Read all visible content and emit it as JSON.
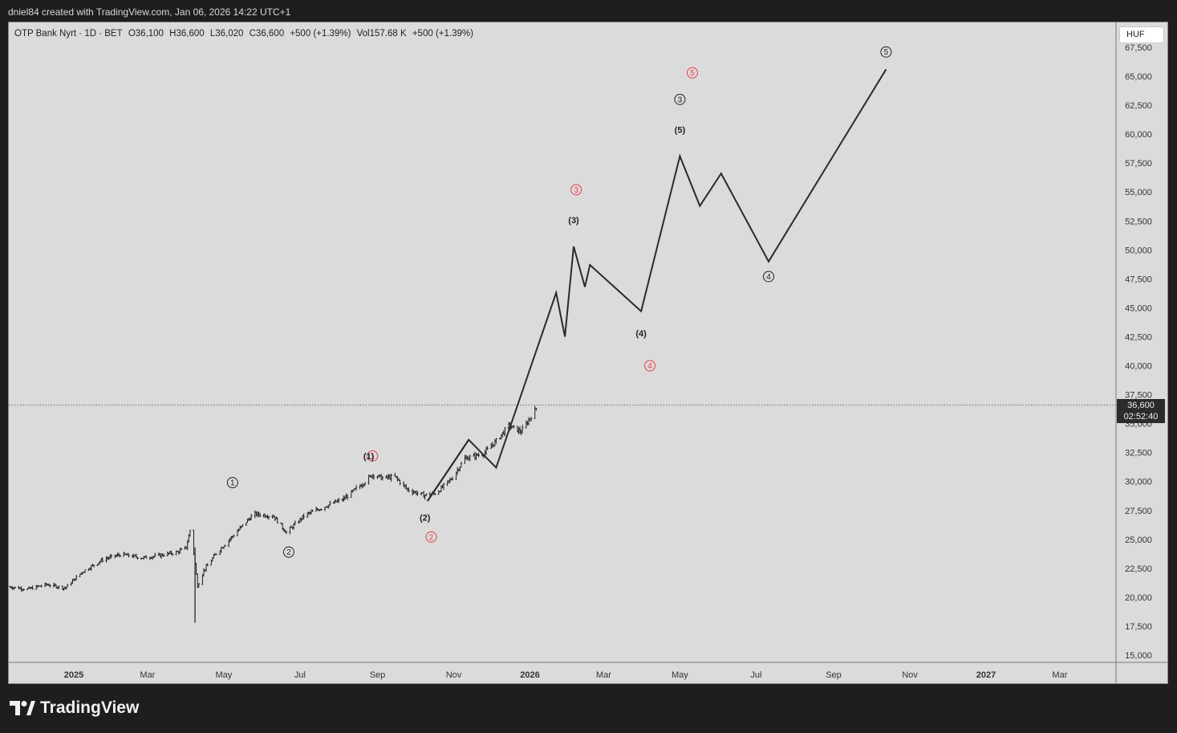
{
  "credit": "dniel84 created with TradingView.com, Jan 06, 2026 14:22 UTC+1",
  "legend": {
    "symbol": "OTP Bank Nyrt · 1D · BET",
    "open": "O36,100",
    "high": "H36,600",
    "low": "L36,020",
    "close": "C36,600",
    "change": "+500 (+1.39%)",
    "volume": "Vol157.68 K",
    "volume_change": "+500 (+1.39%)"
  },
  "currency_label": "HUF",
  "last_price": {
    "value": "36,600",
    "countdown": "02:52:40",
    "price": 36600
  },
  "brand": {
    "name": "TradingView",
    "logo_icon": "tradingview-logo-icon"
  },
  "colors": {
    "background": "#dbdbdb",
    "outer": "#1e1e1e",
    "candle": "#1e1e1e",
    "projection": "#2a2a2a",
    "red_label": "#e8424b",
    "black_label": "#222222"
  },
  "chart_data": {
    "type": "candlestick",
    "y_ticks": [
      67500,
      65000,
      62500,
      60000,
      57500,
      55000,
      52500,
      50000,
      47500,
      45000,
      42500,
      40000,
      37500,
      35000,
      32500,
      30000,
      27500,
      25000,
      22500,
      20000,
      17500,
      15000
    ],
    "y_tick_labels": [
      "67,500",
      "65,000",
      "62,500",
      "60,000",
      "57,500",
      "55,000",
      "52,500",
      "50,000",
      "47,500",
      "45,000",
      "42,500",
      "40,000",
      "37,500",
      "35,000",
      "32,500",
      "30,000",
      "27,500",
      "25,000",
      "22,500",
      "20,000",
      "17,500",
      "15,000"
    ],
    "ylim": [
      15000,
      67500
    ],
    "x_ticks": [
      {
        "date": "2025-01-01",
        "label": "2025",
        "bold": true
      },
      {
        "date": "2025-03-01",
        "label": "Mar",
        "bold": false
      },
      {
        "date": "2025-05-01",
        "label": "May",
        "bold": false
      },
      {
        "date": "2025-07-01",
        "label": "Jul",
        "bold": false
      },
      {
        "date": "2025-09-01",
        "label": "Sep",
        "bold": false
      },
      {
        "date": "2025-11-01",
        "label": "Nov",
        "bold": false
      },
      {
        "date": "2026-01-01",
        "label": "2026",
        "bold": true
      },
      {
        "date": "2026-03-01",
        "label": "Mar",
        "bold": false
      },
      {
        "date": "2026-05-01",
        "label": "May",
        "bold": false
      },
      {
        "date": "2026-07-01",
        "label": "Jul",
        "bold": false
      },
      {
        "date": "2026-09-01",
        "label": "Sep",
        "bold": false
      },
      {
        "date": "2026-11-01",
        "label": "Nov",
        "bold": false
      },
      {
        "date": "2027-01-01",
        "label": "2027",
        "bold": true
      },
      {
        "date": "2027-03-01",
        "label": "Mar",
        "bold": false
      }
    ],
    "xlim": [
      "2024-11-10",
      "2027-04-15"
    ],
    "price_path": [
      [
        "2024-11-10",
        20900
      ],
      [
        "2024-11-25",
        20700
      ],
      [
        "2024-12-10",
        21100
      ],
      [
        "2024-12-25",
        20800
      ],
      [
        "2025-01-08",
        22200
      ],
      [
        "2025-01-25",
        23300
      ],
      [
        "2025-02-08",
        23700
      ],
      [
        "2025-02-25",
        23400
      ],
      [
        "2025-03-10",
        23600
      ],
      [
        "2025-03-25",
        23900
      ],
      [
        "2025-04-01",
        24300
      ],
      [
        "2025-04-04",
        25800
      ],
      [
        "2025-04-07",
        23800
      ],
      [
        "2025-04-10",
        21000
      ],
      [
        "2025-04-15",
        22300
      ],
      [
        "2025-04-25",
        23800
      ],
      [
        "2025-05-10",
        25500
      ],
      [
        "2025-05-25",
        27200
      ],
      [
        "2025-06-10",
        27000
      ],
      [
        "2025-06-20",
        25600
      ],
      [
        "2025-07-05",
        27100
      ],
      [
        "2025-07-20",
        27800
      ],
      [
        "2025-08-05",
        28500
      ],
      [
        "2025-08-20",
        29800
      ],
      [
        "2025-08-28",
        30600
      ],
      [
        "2025-09-05",
        30300
      ],
      [
        "2025-09-15",
        30400
      ],
      [
        "2025-09-25",
        29300
      ],
      [
        "2025-10-08",
        28800
      ],
      [
        "2025-10-18",
        29000
      ],
      [
        "2025-10-30",
        30200
      ],
      [
        "2025-11-10",
        32000
      ],
      [
        "2025-11-25",
        32400
      ],
      [
        "2025-12-05",
        33500
      ],
      [
        "2025-12-15",
        34800
      ],
      [
        "2025-12-25",
        34300
      ],
      [
        "2026-01-06",
        36300
      ]
    ],
    "low_spike": {
      "date": "2025-04-08",
      "low": 17800
    },
    "projection_lines": [
      [
        [
          "2025-10-11",
          28300
        ],
        [
          "2025-11-13",
          33600
        ],
        [
          "2025-12-05",
          31200
        ],
        [
          "2026-01-22",
          46300
        ],
        [
          "2026-01-29",
          42500
        ],
        [
          "2026-02-05",
          50300
        ],
        [
          "2026-02-14",
          46800
        ],
        [
          "2026-02-18",
          48700
        ],
        [
          "2026-03-31",
          44700
        ],
        [
          "2026-05-01",
          58100
        ],
        [
          "2026-05-17",
          53800
        ],
        [
          "2026-06-03",
          56600
        ],
        [
          "2026-07-11",
          49000
        ],
        [
          "2026-10-13",
          65600
        ]
      ],
      [
        [
          "2025-10-11",
          28300
        ],
        [
          "2025-11-13",
          33600
        ]
      ]
    ],
    "wave_labels": [
      {
        "text": "1",
        "style": "circle",
        "color": "black",
        "date": "2025-05-08",
        "price": 29900
      },
      {
        "text": "2",
        "style": "circle",
        "color": "black",
        "date": "2025-06-22",
        "price": 23900
      },
      {
        "text": "1",
        "style": "circle",
        "color": "red",
        "date": "2025-08-28",
        "price": 32200
      },
      {
        "text": "(1)",
        "style": "paren",
        "color": "black",
        "date": "2025-08-25",
        "price": 32200
      },
      {
        "text": "(2)",
        "style": "paren",
        "color": "black",
        "date": "2025-10-09",
        "price": 26900
      },
      {
        "text": "2",
        "style": "circle",
        "color": "red",
        "date": "2025-10-14",
        "price": 25200
      },
      {
        "text": "(3)",
        "style": "paren",
        "color": "black",
        "date": "2026-02-05",
        "price": 52600
      },
      {
        "text": "3",
        "style": "circle",
        "color": "red",
        "date": "2026-02-07",
        "price": 55200
      },
      {
        "text": "(4)",
        "style": "paren",
        "color": "black",
        "date": "2026-03-31",
        "price": 42800
      },
      {
        "text": "4",
        "style": "circle",
        "color": "red",
        "date": "2026-04-07",
        "price": 40000
      },
      {
        "text": "(5)",
        "style": "paren",
        "color": "black",
        "date": "2026-05-01",
        "price": 60400
      },
      {
        "text": "3",
        "style": "circle",
        "color": "black",
        "date": "2026-05-01",
        "price": 63000
      },
      {
        "text": "5",
        "style": "circle",
        "color": "red",
        "date": "2026-05-11",
        "price": 65300
      },
      {
        "text": "4",
        "style": "circle",
        "color": "black",
        "date": "2026-07-11",
        "price": 47700
      },
      {
        "text": "5",
        "style": "circle",
        "color": "black",
        "date": "2026-10-13",
        "price": 67100
      }
    ]
  }
}
